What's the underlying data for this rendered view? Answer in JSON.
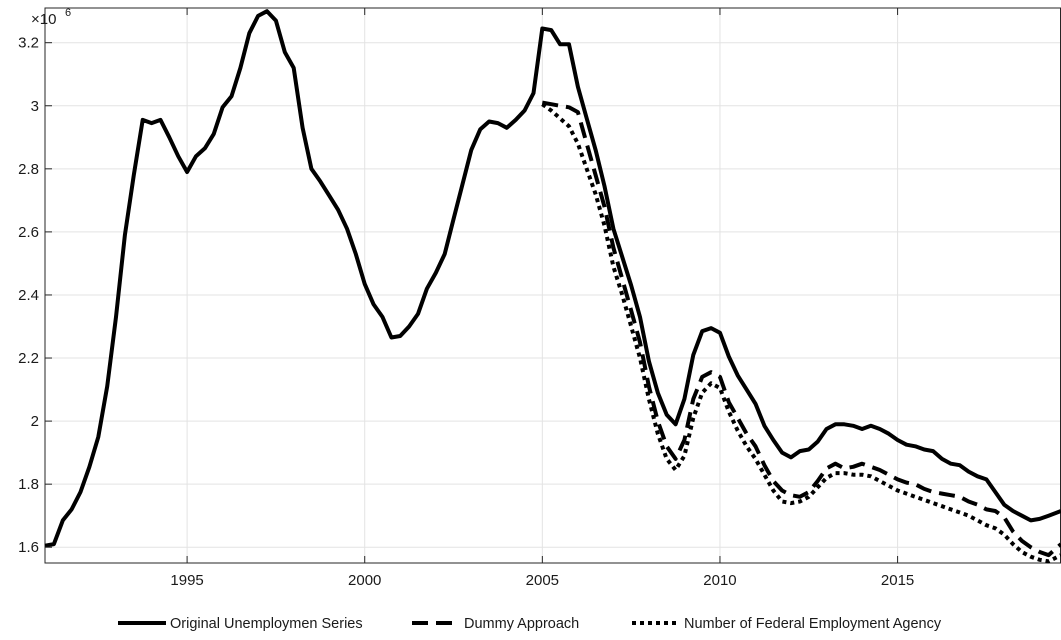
{
  "chart_data": {
    "type": "line",
    "title": "",
    "xlabel": "",
    "ylabel": "",
    "y_exponent_label": "×10",
    "y_exponent_power": "6",
    "xlim": [
      1991.0,
      2019.6
    ],
    "ylim": [
      1550000,
      3310000
    ],
    "grid": true,
    "legend_position": "bottom",
    "x_ticks": [
      1995,
      2000,
      2005,
      2010,
      2015
    ],
    "x_tick_labels": [
      "1995",
      "2000",
      "2005",
      "2010",
      "2015"
    ],
    "y_ticks": [
      1600000,
      1800000,
      2000000,
      2200000,
      2400000,
      2600000,
      2800000,
      3000000,
      3200000
    ],
    "y_tick_labels": [
      "1.6",
      "1.8",
      "2",
      "2.2",
      "2.4",
      "2.6",
      "2.8",
      "3",
      "3.2"
    ],
    "series": [
      {
        "name": "Original Unemploymen Series",
        "style": "solid",
        "color": "#000000",
        "x": [
          1991.0,
          1991.25,
          1991.5,
          1991.75,
          1992.0,
          1992.25,
          1992.5,
          1992.75,
          1993.0,
          1993.25,
          1993.5,
          1993.75,
          1994.0,
          1994.25,
          1994.5,
          1994.75,
          1995.0,
          1995.25,
          1995.5,
          1995.75,
          1996.0,
          1996.25,
          1996.5,
          1996.75,
          1997.0,
          1997.25,
          1997.5,
          1997.75,
          1998.0,
          1998.25,
          1998.5,
          1998.75,
          1999.0,
          1999.25,
          1999.5,
          1999.75,
          2000.0,
          2000.25,
          2000.5,
          2000.75,
          2001.0,
          2001.25,
          2001.5,
          2001.75,
          2002.0,
          2002.25,
          2002.5,
          2002.75,
          2003.0,
          2003.25,
          2003.5,
          2003.75,
          2004.0,
          2004.25,
          2004.5,
          2004.75,
          2005.0,
          2005.25,
          2005.5,
          2005.75,
          2006.0,
          2006.25,
          2006.5,
          2006.75,
          2007.0,
          2007.25,
          2007.5,
          2007.75,
          2008.0,
          2008.25,
          2008.5,
          2008.75,
          2009.0,
          2009.25,
          2009.5,
          2009.75,
          2010.0,
          2010.25,
          2010.5,
          2010.75,
          2011.0,
          2011.25,
          2011.5,
          2011.75,
          2012.0,
          2012.25,
          2012.5,
          2012.75,
          2013.0,
          2013.25,
          2013.5,
          2013.75,
          2014.0,
          2014.25,
          2014.5,
          2014.75,
          2015.0,
          2015.25,
          2015.5,
          2015.75,
          2016.0,
          2016.25,
          2016.5,
          2016.75,
          2017.0,
          2017.25,
          2017.5,
          2017.75,
          2018.0,
          2018.25,
          2018.5,
          2018.75,
          2019.0,
          2019.25,
          2019.6
        ],
        "values": [
          1605000,
          1610000,
          1685000,
          1720000,
          1775000,
          1855000,
          1950000,
          2110000,
          2330000,
          2590000,
          2780000,
          2955000,
          2945000,
          2955000,
          2900000,
          2840000,
          2790000,
          2840000,
          2865000,
          2910000,
          2995000,
          3030000,
          3120000,
          3230000,
          3285000,
          3300000,
          3270000,
          3170000,
          3120000,
          2930000,
          2800000,
          2760000,
          2715000,
          2670000,
          2610000,
          2530000,
          2435000,
          2370000,
          2330000,
          2265000,
          2270000,
          2300000,
          2340000,
          2420000,
          2470000,
          2530000,
          2640000,
          2750000,
          2860000,
          2925000,
          2950000,
          2945000,
          2930000,
          2955000,
          2985000,
          3040000,
          3245000,
          3240000,
          3195000,
          3195000,
          3060000,
          2960000,
          2860000,
          2745000,
          2610000,
          2520000,
          2430000,
          2330000,
          2190000,
          2090000,
          2020000,
          1990000,
          2070000,
          2210000,
          2285000,
          2295000,
          2280000,
          2205000,
          2145000,
          2100000,
          2055000,
          1985000,
          1940000,
          1900000,
          1885000,
          1905000,
          1910000,
          1935000,
          1975000,
          1990000,
          1990000,
          1985000,
          1975000,
          1985000,
          1975000,
          1960000,
          1940000,
          1925000,
          1920000,
          1910000,
          1905000,
          1880000,
          1865000,
          1860000,
          1840000,
          1825000,
          1815000,
          1775000,
          1735000,
          1715000,
          1700000,
          1685000,
          1690000,
          1700000,
          1715000
        ]
      },
      {
        "name": "Dummy Approach",
        "style": "dashed",
        "color": "#000000",
        "x": [
          2005.0,
          2005.25,
          2005.5,
          2005.75,
          2006.0,
          2006.25,
          2006.5,
          2006.75,
          2007.0,
          2007.25,
          2007.5,
          2007.75,
          2008.0,
          2008.25,
          2008.5,
          2008.75,
          2009.0,
          2009.25,
          2009.5,
          2009.75,
          2010.0,
          2010.25,
          2010.5,
          2010.75,
          2011.0,
          2011.25,
          2011.5,
          2011.75,
          2012.0,
          2012.25,
          2012.5,
          2012.75,
          2013.0,
          2013.25,
          2013.5,
          2013.75,
          2014.0,
          2014.25,
          2014.5,
          2014.75,
          2015.0,
          2015.25,
          2015.5,
          2015.75,
          2016.0,
          2016.25,
          2016.5,
          2016.75,
          2017.0,
          2017.25,
          2017.5,
          2017.75,
          2018.0,
          2018.25,
          2018.5,
          2018.75,
          2019.0,
          2019.25,
          2019.6
        ],
        "values": [
          3010000,
          3005000,
          3000000,
          2995000,
          2980000,
          2880000,
          2780000,
          2680000,
          2550000,
          2450000,
          2350000,
          2250000,
          2110000,
          2000000,
          1920000,
          1880000,
          1940000,
          2070000,
          2140000,
          2155000,
          2140000,
          2060000,
          2010000,
          1960000,
          1920000,
          1860000,
          1810000,
          1780000,
          1765000,
          1760000,
          1775000,
          1810000,
          1850000,
          1865000,
          1850000,
          1855000,
          1865000,
          1855000,
          1845000,
          1830000,
          1815000,
          1805000,
          1800000,
          1785000,
          1775000,
          1770000,
          1765000,
          1760000,
          1745000,
          1735000,
          1720000,
          1715000,
          1695000,
          1650000,
          1620000,
          1600000,
          1585000,
          1575000,
          1610000
        ]
      },
      {
        "name": "Number of Federal Employment Agency",
        "style": "dotted",
        "color": "#000000",
        "x": [
          2005.0,
          2005.25,
          2005.5,
          2005.75,
          2006.0,
          2006.25,
          2006.5,
          2006.75,
          2007.0,
          2007.25,
          2007.5,
          2007.75,
          2008.0,
          2008.25,
          2008.5,
          2008.75,
          2009.0,
          2009.25,
          2009.5,
          2009.75,
          2010.0,
          2010.25,
          2010.5,
          2010.75,
          2011.0,
          2011.25,
          2011.5,
          2011.75,
          2012.0,
          2012.25,
          2012.5,
          2012.75,
          2013.0,
          2013.25,
          2013.5,
          2013.75,
          2014.0,
          2014.25,
          2014.5,
          2014.75,
          2015.0,
          2015.25,
          2015.5,
          2015.75,
          2016.0,
          2016.25,
          2016.5,
          2016.75,
          2017.0,
          2017.25,
          2017.5,
          2017.75,
          2018.0,
          2018.25,
          2018.5,
          2018.75,
          2019.0,
          2019.25,
          2019.6
        ],
        "values": [
          3005000,
          2985000,
          2960000,
          2935000,
          2880000,
          2800000,
          2720000,
          2620000,
          2490000,
          2400000,
          2300000,
          2200000,
          2070000,
          1960000,
          1880000,
          1845000,
          1890000,
          2010000,
          2090000,
          2120000,
          2105000,
          2030000,
          1970000,
          1920000,
          1880000,
          1830000,
          1780000,
          1745000,
          1740000,
          1745000,
          1760000,
          1790000,
          1820000,
          1835000,
          1835000,
          1830000,
          1830000,
          1825000,
          1810000,
          1795000,
          1780000,
          1770000,
          1760000,
          1750000,
          1740000,
          1730000,
          1720000,
          1710000,
          1700000,
          1685000,
          1670000,
          1660000,
          1640000,
          1610000,
          1585000,
          1570000,
          1560000,
          1555000,
          1575000
        ]
      }
    ]
  }
}
